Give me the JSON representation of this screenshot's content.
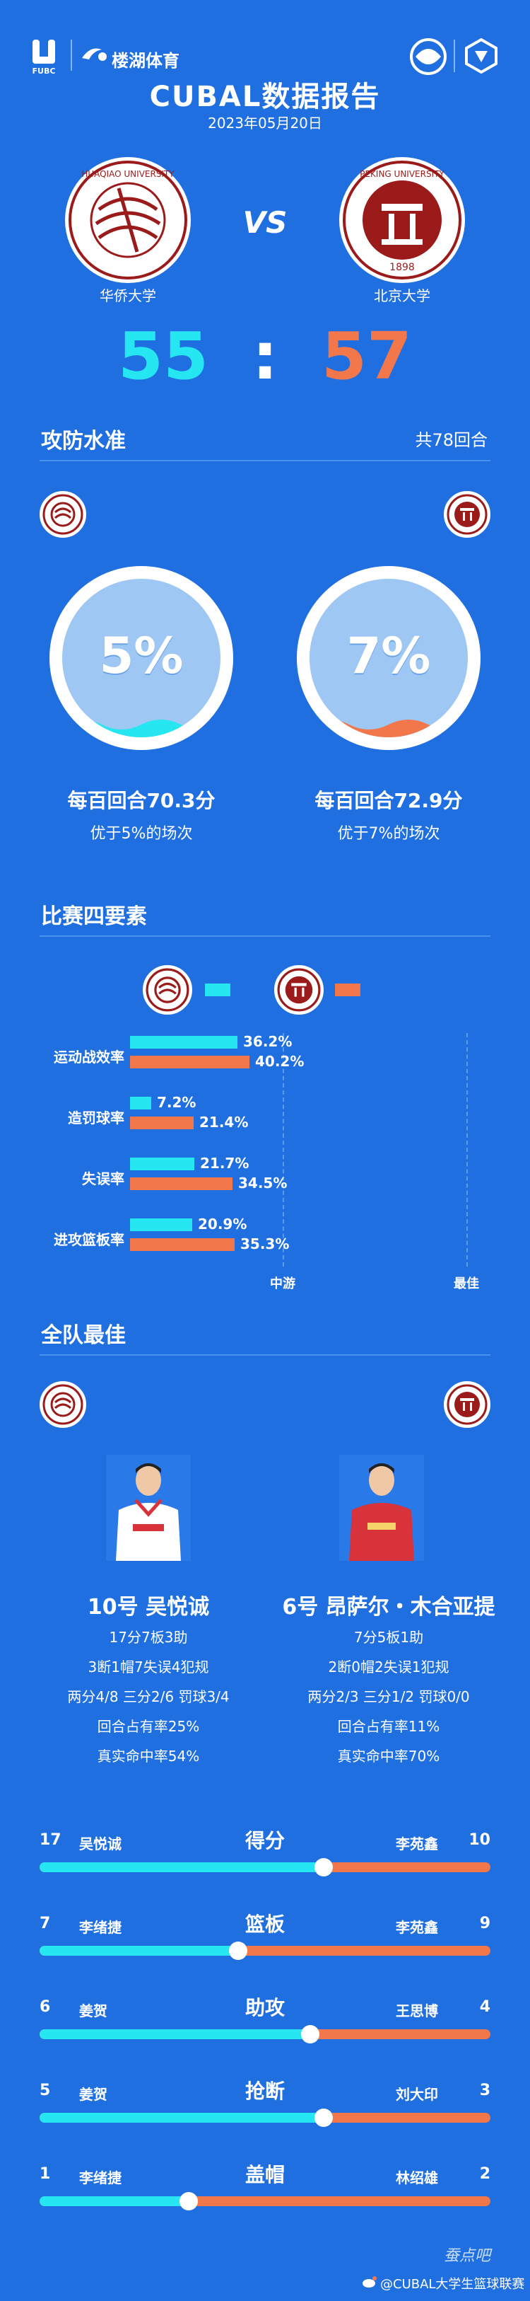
{
  "header": {
    "org_label": "FUBC",
    "brand": "楼湖体育",
    "title": "CUBAL数据报告",
    "date": "2023年05月20日"
  },
  "teams": {
    "home": {
      "name": "华侨大学",
      "score": "55",
      "seal_text": "HUAQIAO UNIVERSITY"
    },
    "away": {
      "name": "北京大学",
      "score": "57",
      "seal_text": "PEKING UNIVERSITY"
    },
    "vs": "VS",
    "colon": ":"
  },
  "efficiency": {
    "section": "攻防水准",
    "rounds": "共78回合",
    "home": {
      "pct": "5%",
      "fraction": 0.05,
      "rate": "每百回合70.3分",
      "note": "优于5%的场次"
    },
    "away": {
      "pct": "7%",
      "fraction": 0.07,
      "rate": "每百回合72.9分",
      "note": "优于7%的场次"
    }
  },
  "four_factors": {
    "section": "比赛四要素",
    "axis_mid": "中游",
    "axis_best": "最佳",
    "rows": [
      {
        "label": "运动战效率",
        "home": "36.2%",
        "away": "40.2%",
        "home_v": 0.362,
        "away_v": 0.402
      },
      {
        "label": "造罚球率",
        "home": "7.2%",
        "away": "21.4%",
        "home_v": 0.072,
        "away_v": 0.214
      },
      {
        "label": "失误率",
        "home": "21.7%",
        "away": "34.5%",
        "home_v": 0.217,
        "away_v": 0.345
      },
      {
        "label": "进攻篮板率",
        "home": "20.9%",
        "away": "35.3%",
        "home_v": 0.209,
        "away_v": 0.353
      }
    ]
  },
  "best": {
    "section": "全队最佳",
    "home": {
      "name": "10号  吴悦诚",
      "line1": "17分7板3助",
      "line2": "3断1帽7失误4犯规",
      "line3": "两分4/8 三分2/6 罚球3/4",
      "line4": "回合占有率25%",
      "line5": "真实命中率54%"
    },
    "away": {
      "name": "6号  昂萨尔・木合亚提",
      "line1": "7分5板1助",
      "line2": "2断0帽2失误1犯规",
      "line3": "两分2/3 三分1/2 罚球0/0",
      "line4": "回合占有率11%",
      "line5": "真实命中率70%"
    }
  },
  "compare": [
    {
      "title": "得分",
      "home_num": "17",
      "home_name": "吴悦诚",
      "away_name": "李苑鑫",
      "away_num": "10",
      "home_share": 0.63
    },
    {
      "title": "篮板",
      "home_num": "7",
      "home_name": "李绪捷",
      "away_name": "李苑鑫",
      "away_num": "9",
      "home_share": 0.44
    },
    {
      "title": "助攻",
      "home_num": "6",
      "home_name": "姜贺",
      "away_name": "王思博",
      "away_num": "4",
      "home_share": 0.6
    },
    {
      "title": "抢断",
      "home_num": "5",
      "home_name": "姜贺",
      "away_name": "刘大印",
      "away_num": "3",
      "home_share": 0.63
    },
    {
      "title": "盖帽",
      "home_num": "1",
      "home_name": "李绪捷",
      "away_name": "林绍雄",
      "away_num": "2",
      "home_share": 0.33
    }
  ],
  "footer": {
    "credit": "@CUBAL大学生篮球联赛",
    "watermark": "蚕点吧"
  },
  "colors": {
    "background": "#1f6fe0",
    "home": "#26e6f2",
    "away": "#f2774a"
  }
}
